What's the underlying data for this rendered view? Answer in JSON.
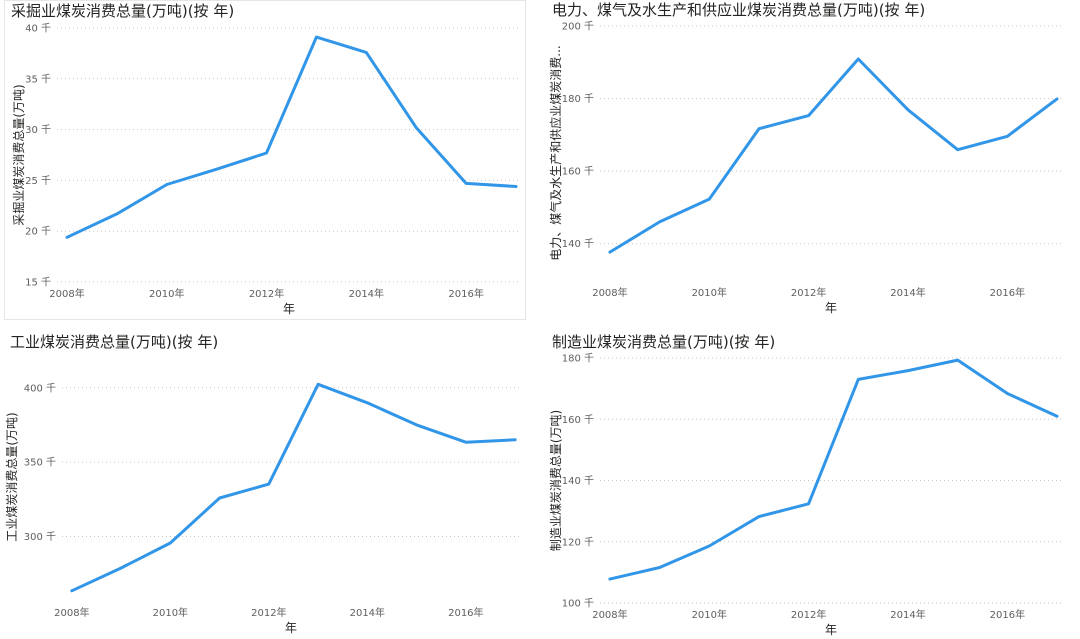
{
  "colors": {
    "series": "#3196e8"
  },
  "chart_data": [
    {
      "type": "line",
      "title": "采掘业煤炭消费总量(万吨)(按 年)",
      "xlabel": "年",
      "ylabel": "采掘业煤炭消费总量(万吨)",
      "x": [
        2008,
        2009,
        2010,
        2011,
        2012,
        2013,
        2014,
        2015,
        2016,
        2017
      ],
      "xticks": [
        2008,
        2010,
        2012,
        2014,
        2016
      ],
      "xtick_labels": [
        "2008年",
        "2010年",
        "2012年",
        "2014年",
        "2016年"
      ],
      "xlim": [
        2007.8,
        2017.1
      ],
      "yticks": [
        15,
        20,
        25,
        30,
        35,
        40
      ],
      "ytick_labels": [
        "15 千",
        "20 千",
        "25 千",
        "30 千",
        "35 千",
        "40 千"
      ],
      "ylim": [
        15,
        40
      ],
      "grid": true,
      "series": [
        {
          "values": [
            19.4,
            21.7,
            24.6,
            26.1,
            27.7,
            39.1,
            37.6,
            30.2,
            24.7,
            24.4
          ]
        }
      ]
    },
    {
      "type": "line",
      "title": "电力、煤气及水生产和供应业煤炭消费总量(万吨)(按 年)",
      "xlabel": "年",
      "ylabel": "电力、煤气及水生产和供应业煤炭消费...",
      "x": [
        2008,
        2009,
        2010,
        2011,
        2012,
        2013,
        2014,
        2015,
        2016,
        2017
      ],
      "xticks": [
        2008,
        2010,
        2012,
        2014,
        2016
      ],
      "xtick_labels": [
        "2008年",
        "2010年",
        "2012年",
        "2014年",
        "2016年"
      ],
      "xlim": [
        2007.8,
        2017.1
      ],
      "yticks": [
        140,
        160,
        180,
        200
      ],
      "ytick_labels": [
        "140 千",
        "160 千",
        "180 千",
        "200 千"
      ],
      "ylim": [
        130,
        200
      ],
      "grid": true,
      "series": [
        {
          "values": [
            137.7,
            146.0,
            152.3,
            171.7,
            175.3,
            190.9,
            176.9,
            165.9,
            169.6,
            179.9
          ]
        }
      ]
    },
    {
      "type": "line",
      "title": "工业煤炭消费总量(万吨)(按 年)",
      "xlabel": "年",
      "ylabel": "工业煤炭消费总量(万吨)",
      "x": [
        2008,
        2009,
        2010,
        2011,
        2012,
        2013,
        2014,
        2015,
        2016,
        2017
      ],
      "xticks": [
        2008,
        2010,
        2012,
        2014,
        2016
      ],
      "xtick_labels": [
        "2008年",
        "2010年",
        "2012年",
        "2014年",
        "2016年"
      ],
      "xlim": [
        2007.8,
        2017.1
      ],
      "yticks": [
        300,
        350,
        400
      ],
      "ytick_labels": [
        "300 千",
        "350 千",
        "400 千"
      ],
      "ylim": [
        260,
        420
      ],
      "grid": true,
      "series": [
        {
          "values": [
            263.5,
            278.8,
            295.6,
            325.9,
            335.2,
            402.3,
            389.9,
            375.0,
            363.4,
            365.0
          ]
        }
      ]
    },
    {
      "type": "line",
      "title": "制造业煤炭消费总量(万吨)(按 年)",
      "xlabel": "年",
      "ylabel": "制造业煤炭消费总量(万吨)",
      "x": [
        2008,
        2009,
        2010,
        2011,
        2012,
        2013,
        2014,
        2015,
        2016,
        2017
      ],
      "xticks": [
        2008,
        2010,
        2012,
        2014,
        2016
      ],
      "xtick_labels": [
        "2008年",
        "2010年",
        "2012年",
        "2014年",
        "2016年"
      ],
      "xlim": [
        2007.8,
        2017.1
      ],
      "yticks": [
        100,
        120,
        140,
        160,
        180
      ],
      "ytick_labels": [
        "100 千",
        "120 千",
        "140 千",
        "160 千",
        "180 千"
      ],
      "ylim": [
        100,
        180
      ],
      "grid": true,
      "series": [
        {
          "values": [
            107.8,
            111.6,
            118.6,
            128.2,
            132.4,
            173.0,
            175.9,
            179.3,
            168.4,
            161.0
          ]
        }
      ]
    }
  ]
}
